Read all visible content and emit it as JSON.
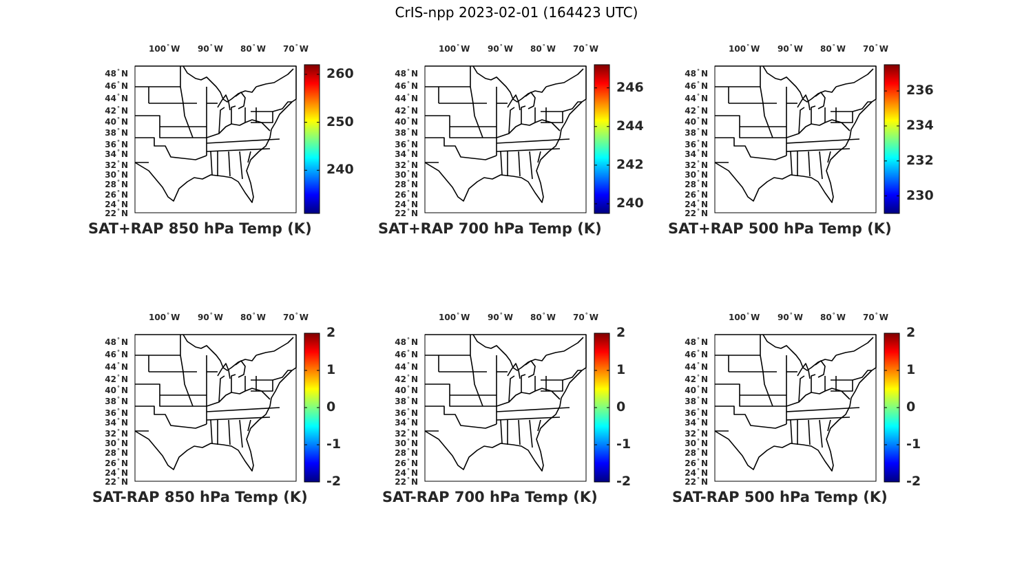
{
  "figure_title": "CrIS-npp 2023-02-01 (164423 UTC)",
  "lon_ticks": [
    {
      "value": "100",
      "dir": "W"
    },
    {
      "value": "90",
      "dir": "W"
    },
    {
      "value": "80",
      "dir": "W"
    },
    {
      "value": "70",
      "dir": "W"
    }
  ],
  "lat_ticks": [
    {
      "value": "48",
      "dir": "N"
    },
    {
      "value": "46",
      "dir": "N"
    },
    {
      "value": "44",
      "dir": "N"
    },
    {
      "value": "42",
      "dir": "N"
    },
    {
      "value": "40",
      "dir": "N"
    },
    {
      "value": "38",
      "dir": "N"
    },
    {
      "value": "36",
      "dir": "N"
    },
    {
      "value": "34",
      "dir": "N"
    },
    {
      "value": "32",
      "dir": "N"
    },
    {
      "value": "30",
      "dir": "N"
    },
    {
      "value": "28",
      "dir": "N"
    },
    {
      "value": "26",
      "dir": "N"
    },
    {
      "value": "24",
      "dir": "N"
    },
    {
      "value": "22",
      "dir": "N"
    }
  ],
  "degree_symbol": "°",
  "colormap": "jet",
  "panels": [
    {
      "title": "SAT+RAP 850 hPa Temp (K)",
      "colorbar": {
        "min": 231,
        "max": 262,
        "ticks": [
          "260",
          "250",
          "240"
        ],
        "tick_values": [
          260,
          250,
          240
        ]
      }
    },
    {
      "title": "SAT+RAP 700 hPa Temp (K)",
      "colorbar": {
        "min": 239.5,
        "max": 247.2,
        "ticks": [
          "246",
          "244",
          "242",
          "240"
        ],
        "tick_values": [
          246,
          244,
          242,
          240
        ]
      }
    },
    {
      "title": "SAT+RAP 500 hPa Temp (K)",
      "colorbar": {
        "min": 229,
        "max": 237.5,
        "ticks": [
          "236",
          "234",
          "232",
          "230"
        ],
        "tick_values": [
          236,
          234,
          232,
          230
        ]
      }
    },
    {
      "title": "SAT-RAP 850 hPa Temp (K)",
      "colorbar": {
        "min": -2,
        "max": 2,
        "ticks": [
          "2",
          "1",
          "0",
          "-1",
          "-2"
        ],
        "tick_values": [
          2,
          1,
          0,
          -1,
          -2
        ]
      }
    },
    {
      "title": "SAT-RAP 700 hPa Temp (K)",
      "colorbar": {
        "min": -2,
        "max": 2,
        "ticks": [
          "2",
          "1",
          "0",
          "-1",
          "-2"
        ],
        "tick_values": [
          2,
          1,
          0,
          -1,
          -2
        ]
      }
    },
    {
      "title": "SAT-RAP 500 hPa Temp (K)",
      "colorbar": {
        "min": -2,
        "max": 2,
        "ticks": [
          "2",
          "1",
          "0",
          "-1",
          "-2"
        ],
        "tick_values": [
          2,
          1,
          0,
          -1,
          -2
        ]
      }
    }
  ]
}
